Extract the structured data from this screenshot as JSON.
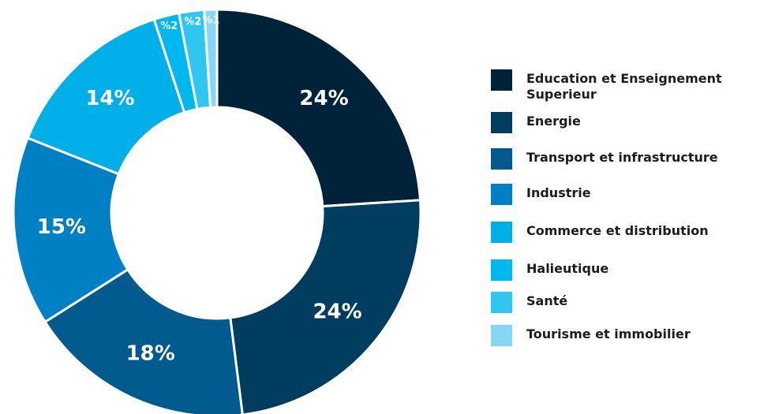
{
  "chart_data": {
    "type": "donut",
    "categories": [
      "Education et Enseignement Superieur",
      "Energie",
      "Transport et infrastructure",
      "Industrie",
      "Commerce et distribution",
      "Halieutique",
      "Santé",
      "Tourisme et immobilier"
    ],
    "values": [
      24,
      24,
      18,
      15,
      14,
      2,
      2,
      1
    ],
    "value_labels": [
      "24%",
      "24%",
      "18%",
      "15%",
      "14%",
      "%2",
      "%2",
      "%1"
    ],
    "colors": [
      "#00233a",
      "#003d5e",
      "#005a8e",
      "#0080c4",
      "#00aee8",
      "#00b8f0",
      "#30c6f2",
      "#86d6f6"
    ],
    "legend": "right"
  }
}
